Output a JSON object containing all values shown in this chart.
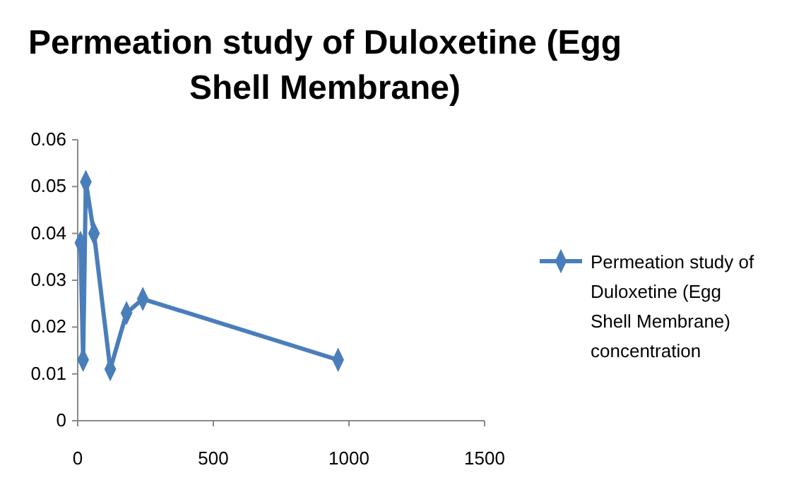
{
  "chart_data": {
    "type": "line",
    "title": "Permeation study of Duloxetine (Egg Shell Membrane)",
    "x": [
      10,
      20,
      30,
      60,
      120,
      180,
      240,
      960
    ],
    "series": [
      {
        "name": "Permeation study of Duloxetine (Egg Shell Membrane) concentration",
        "color": "#4a7ebb",
        "values": [
          0.038,
          0.013,
          0.051,
          0.04,
          0.011,
          0.023,
          0.026,
          0.013
        ]
      }
    ],
    "xlim": [
      0,
      1500
    ],
    "xticks": [
      0,
      500,
      1000,
      1500
    ],
    "ylim": [
      0,
      0.06
    ],
    "yticks": [
      0,
      0.01,
      0.02,
      0.03,
      0.04,
      0.05,
      0.06
    ],
    "marker": "diamond",
    "legend": "right",
    "grid": false
  }
}
